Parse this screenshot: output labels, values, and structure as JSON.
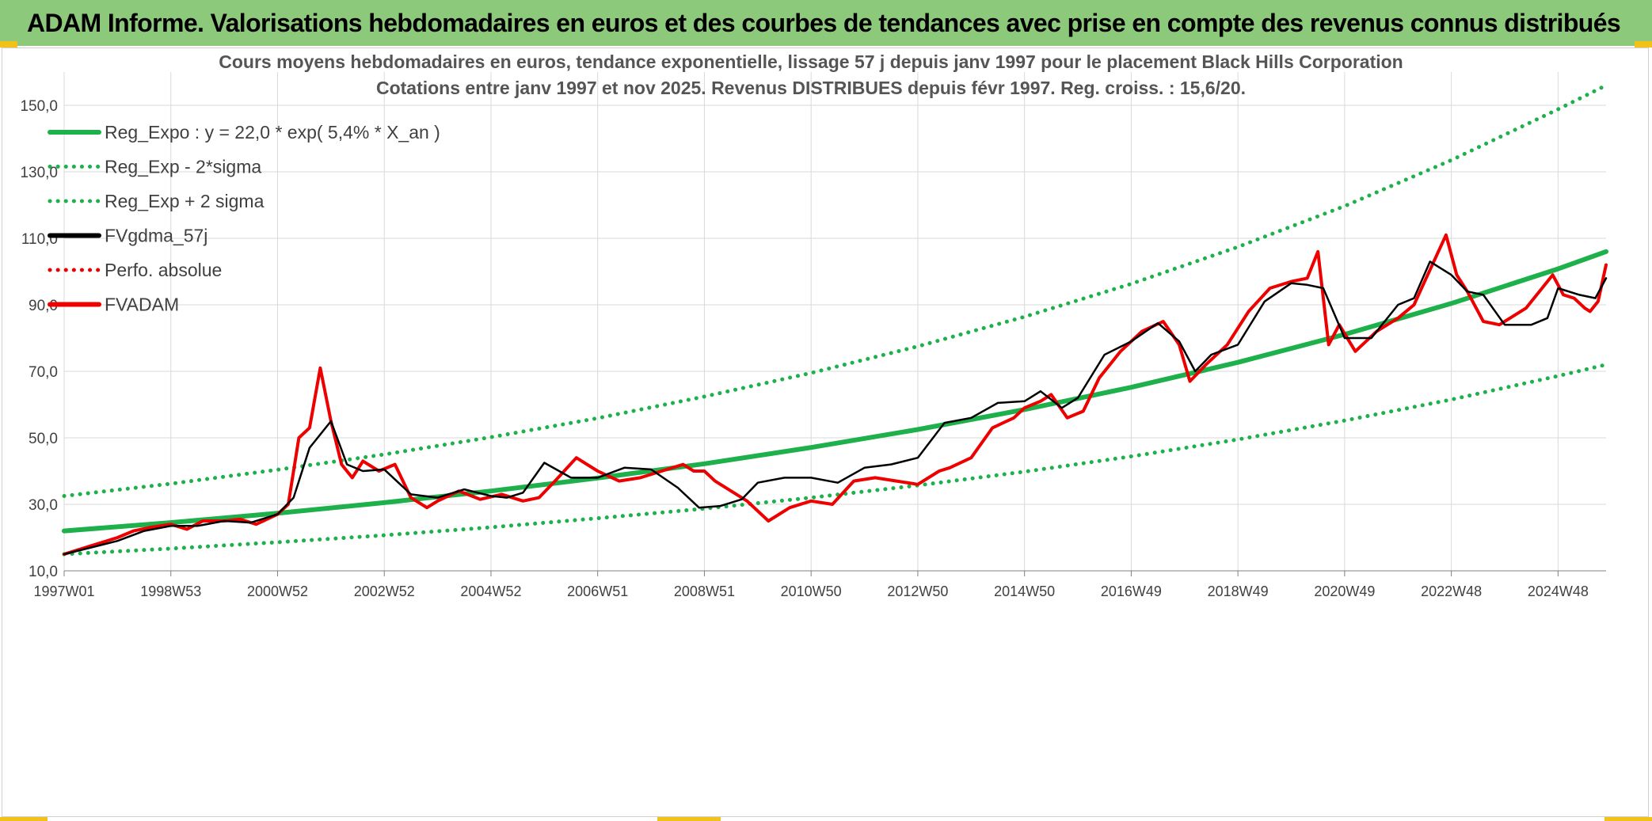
{
  "header": {
    "title": "ADAM Informe. Valorisations hebdomadaires en euros et des courbes de tendances avec prise en compte des revenus connus distribués"
  },
  "chart_data": {
    "type": "line",
    "title": "Cours moyens hebdomadaires en euros, tendance exponentielle, lissage 57 j depuis janv 1997 pour le placement Black Hills Corporation",
    "subtitle": "Cotations entre janv 1997 et nov 2025. Revenus DISTRIBUES depuis févr 1997. Reg. croiss. : 15,6/20.",
    "xlabel": "",
    "ylabel": "",
    "x_tick_labels": [
      "1997W01",
      "1998W53",
      "2000W52",
      "2002W52",
      "2004W52",
      "2006W51",
      "2008W51",
      "2010W50",
      "2012W50",
      "2014W50",
      "2016W49",
      "2018W49",
      "2020W49",
      "2022W48",
      "2024W48"
    ],
    "x_tick_years": [
      1997,
      1999,
      2001,
      2003,
      2005,
      2007,
      2009,
      2011,
      2013,
      2015,
      2017,
      2019,
      2021,
      2023,
      2025
    ],
    "xlim": [
      1997,
      2025.9
    ],
    "y_tick_labels": [
      "10,0",
      "30,0",
      "50,0",
      "70,0",
      "90,0",
      "110,0",
      "130,0",
      "150,0"
    ],
    "y_tick_values": [
      10,
      30,
      50,
      70,
      90,
      110,
      130,
      150
    ],
    "ylim": [
      10,
      160
    ],
    "grid": true,
    "legend_position": "top-left",
    "colors": {
      "trend": "#1db04b",
      "smooth": "#000000",
      "price": "#ee0000"
    },
    "series": [
      {
        "name": "Reg_Expo : y = 22,0 * exp( 5,4% *  X_an )",
        "style": "solid",
        "color": "#1db04b",
        "x": [
          1997,
          1999,
          2001,
          2003,
          2005,
          2007,
          2009,
          2011,
          2013,
          2015,
          2017,
          2019,
          2021,
          2023,
          2025,
          2025.9
        ],
        "y": [
          22.0,
          24.5,
          27.3,
          30.5,
          34.0,
          37.9,
          42.2,
          47.1,
          52.5,
          58.5,
          65.2,
          72.7,
          81.1,
          90.4,
          100.8,
          106.0
        ]
      },
      {
        "name": "Reg_Exp - 2*sigma",
        "style": "dotted",
        "color": "#1db04b",
        "x": [
          1997,
          1999,
          2001,
          2003,
          2005,
          2007,
          2009,
          2011,
          2013,
          2015,
          2017,
          2019,
          2021,
          2023,
          2025,
          2025.9
        ],
        "y": [
          15.0,
          16.7,
          18.6,
          20.7,
          23.1,
          25.8,
          28.7,
          32.0,
          35.7,
          39.8,
          44.4,
          49.5,
          55.2,
          61.5,
          68.6,
          72.0
        ]
      },
      {
        "name": "Reg_Exp + 2 sigma",
        "style": "dotted",
        "color": "#1db04b",
        "x": [
          1997,
          1999,
          2001,
          2003,
          2005,
          2007,
          2009,
          2011,
          2013,
          2015,
          2017,
          2019,
          2021,
          2023,
          2025,
          2025.9
        ],
        "y": [
          32.5,
          36.2,
          40.4,
          45.0,
          50.2,
          55.9,
          62.4,
          69.5,
          77.5,
          86.4,
          96.3,
          107.4,
          119.7,
          133.5,
          148.8,
          156.0
        ]
      },
      {
        "name": "FVgdma_57j",
        "style": "solid",
        "color": "#000000",
        "x": [
          1997.0,
          1997.5,
          1998.0,
          1998.5,
          1999.0,
          1999.5,
          2000.0,
          2000.5,
          2001.0,
          2001.3,
          2001.6,
          2002.0,
          2002.3,
          2002.6,
          2003.0,
          2003.5,
          2004.0,
          2004.5,
          2005.0,
          2005.3,
          2005.6,
          2006.0,
          2006.5,
          2007.0,
          2007.5,
          2008.0,
          2008.5,
          2008.9,
          2009.3,
          2009.7,
          2010.0,
          2010.5,
          2011.0,
          2011.5,
          2012.0,
          2012.5,
          2013.0,
          2013.5,
          2014.0,
          2014.5,
          2015.0,
          2015.3,
          2015.7,
          2016.0,
          2016.5,
          2017.0,
          2017.5,
          2017.9,
          2018.2,
          2018.5,
          2019.0,
          2019.5,
          2020.0,
          2020.3,
          2020.6,
          2021.0,
          2021.5,
          2022.0,
          2022.3,
          2022.6,
          2023.0,
          2023.3,
          2023.6,
          2024.0,
          2024.5,
          2024.8,
          2025.0,
          2025.4,
          2025.7,
          2025.9
        ],
        "y": [
          15.0,
          17.0,
          19.0,
          22.0,
          23.5,
          23.5,
          25.0,
          24.5,
          27.0,
          32.0,
          47.0,
          55.0,
          42.0,
          40.0,
          40.5,
          33.0,
          32.0,
          34.5,
          32.5,
          32.0,
          33.5,
          42.5,
          38.0,
          38.0,
          41.0,
          40.5,
          35.0,
          29.0,
          29.5,
          31.5,
          36.5,
          38.0,
          38.0,
          36.5,
          41.0,
          42.0,
          44.0,
          54.5,
          56.0,
          60.5,
          61.0,
          64.0,
          59.0,
          62.0,
          75.0,
          79.0,
          84.5,
          79.0,
          70.0,
          75.0,
          78.0,
          91.0,
          96.5,
          96.0,
          95.0,
          80.0,
          80.0,
          90.0,
          92.0,
          103.0,
          99.0,
          94.0,
          93.0,
          84.0,
          84.0,
          86.0,
          95.0,
          93.0,
          92.0,
          98.0
        ]
      },
      {
        "name": "Perfo. absolue",
        "style": "dotted",
        "color": "#ee0000",
        "x": [],
        "y": []
      },
      {
        "name": "FVADAM",
        "style": "solid",
        "color": "#ee0000",
        "x": [
          1997.0,
          1997.3,
          1997.6,
          1998.0,
          1998.3,
          1998.6,
          1999.0,
          1999.3,
          1999.6,
          2000.0,
          2000.3,
          2000.6,
          2001.0,
          2001.2,
          2001.4,
          2001.6,
          2001.8,
          2002.0,
          2002.2,
          2002.4,
          2002.6,
          2002.9,
          2003.2,
          2003.5,
          2003.8,
          2004.0,
          2004.4,
          2004.8,
          2005.2,
          2005.6,
          2005.9,
          2006.2,
          2006.6,
          2007.0,
          2007.4,
          2007.8,
          2008.2,
          2008.6,
          2008.8,
          2009.0,
          2009.2,
          2009.5,
          2009.8,
          2010.2,
          2010.6,
          2011.0,
          2011.4,
          2011.8,
          2012.2,
          2012.6,
          2013.0,
          2013.4,
          2013.6,
          2014.0,
          2014.4,
          2014.8,
          2015.0,
          2015.3,
          2015.5,
          2015.8,
          2016.1,
          2016.4,
          2016.8,
          2017.2,
          2017.6,
          2017.9,
          2018.1,
          2018.4,
          2018.8,
          2019.2,
          2019.6,
          2020.0,
          2020.3,
          2020.5,
          2020.7,
          2020.9,
          2021.2,
          2021.6,
          2022.0,
          2022.3,
          2022.5,
          2022.7,
          2022.9,
          2023.1,
          2023.3,
          2023.6,
          2023.9,
          2024.1,
          2024.4,
          2024.7,
          2024.9,
          2025.1,
          2025.3,
          2025.5,
          2025.6,
          2025.75,
          2025.9
        ],
        "y": [
          15.0,
          16.5,
          18.0,
          20.0,
          22.0,
          23.0,
          24.0,
          22.5,
          25.0,
          25.0,
          25.5,
          24.0,
          27.0,
          30.0,
          50.0,
          53.0,
          71.0,
          55.0,
          42.0,
          38.0,
          43.0,
          40.0,
          42.0,
          32.0,
          29.0,
          31.0,
          34.0,
          31.5,
          33.0,
          31.0,
          32.0,
          37.0,
          44.0,
          40.0,
          37.0,
          38.0,
          40.0,
          42.0,
          40.0,
          40.0,
          37.0,
          34.0,
          31.0,
          25.0,
          29.0,
          31.0,
          30.0,
          37.0,
          38.0,
          37.0,
          36.0,
          40.0,
          41.0,
          44.0,
          53.0,
          56.0,
          59.0,
          61.0,
          63.0,
          56.0,
          58.0,
          68.0,
          76.0,
          82.0,
          85.0,
          78.0,
          67.0,
          72.0,
          78.0,
          88.0,
          95.0,
          97.0,
          98.0,
          106.0,
          78.0,
          84.0,
          76.0,
          82.0,
          86.0,
          90.0,
          97.0,
          104.0,
          111.0,
          99.0,
          94.0,
          85.0,
          84.0,
          86.0,
          89.0,
          95.0,
          99.0,
          93.0,
          92.0,
          89.0,
          88.0,
          91.0,
          102.0
        ]
      }
    ]
  }
}
